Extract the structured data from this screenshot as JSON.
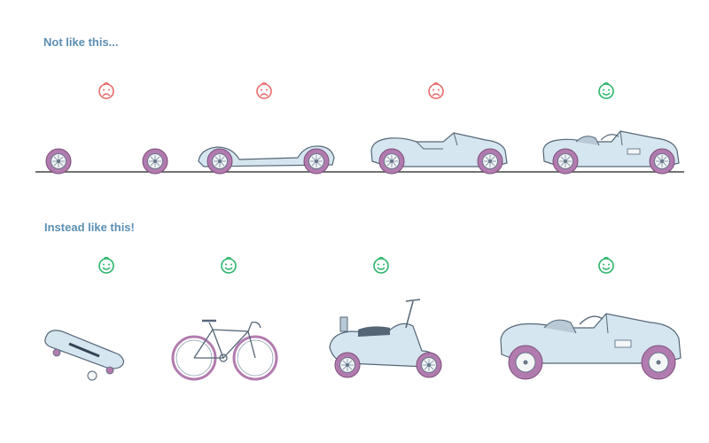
{
  "top_section": {
    "heading": "Not like this...",
    "steps": [
      {
        "item": "two-wheels",
        "mood": "sad"
      },
      {
        "item": "wheels-with-chassis",
        "mood": "sad"
      },
      {
        "item": "car-body-without-interior",
        "mood": "sad"
      },
      {
        "item": "complete-vintage-car",
        "mood": "happy"
      }
    ]
  },
  "bottom_section": {
    "heading": "Instead like this!",
    "steps": [
      {
        "item": "skateboard",
        "mood": "happy"
      },
      {
        "item": "bicycle",
        "mood": "happy"
      },
      {
        "item": "scooter",
        "mood": "happy"
      },
      {
        "item": "complete-vintage-car",
        "mood": "happy"
      }
    ]
  },
  "colors": {
    "heading": "#5b8fb3",
    "sad": "#e86b6b",
    "happy": "#2bb56a",
    "body": "#d6e6f0",
    "outline": "#556677",
    "tire": "#b27bb0"
  }
}
